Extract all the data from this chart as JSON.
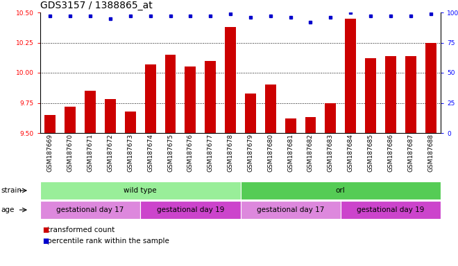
{
  "title": "GDS3157 / 1388865_at",
  "samples": [
    "GSM187669",
    "GSM187670",
    "GSM187671",
    "GSM187672",
    "GSM187673",
    "GSM187674",
    "GSM187675",
    "GSM187676",
    "GSM187677",
    "GSM187678",
    "GSM187679",
    "GSM187680",
    "GSM187681",
    "GSM187682",
    "GSM187683",
    "GSM187684",
    "GSM187685",
    "GSM187686",
    "GSM187687",
    "GSM187688"
  ],
  "bar_values": [
    9.65,
    9.72,
    9.85,
    9.78,
    9.68,
    10.07,
    10.15,
    10.05,
    10.1,
    10.38,
    9.83,
    9.9,
    9.62,
    9.63,
    9.75,
    10.45,
    10.12,
    10.14,
    10.14,
    10.25
  ],
  "percentile_values": [
    97,
    97,
    97,
    95,
    97,
    97,
    97,
    97,
    97,
    99,
    96,
    97,
    96,
    92,
    96,
    100,
    97,
    97,
    97,
    99
  ],
  "ylim_left": [
    9.5,
    10.5
  ],
  "ylim_right": [
    0,
    100
  ],
  "yticks_left": [
    9.5,
    9.75,
    10.0,
    10.25,
    10.5
  ],
  "yticks_right": [
    0,
    25,
    50,
    75,
    100
  ],
  "bar_color": "#cc0000",
  "dot_color": "#0000cc",
  "grid_yticks": [
    9.75,
    10.0,
    10.25
  ],
  "strain_groups": [
    {
      "label": "wild type",
      "start": 0,
      "end": 9,
      "color": "#99ee99"
    },
    {
      "label": "orl",
      "start": 10,
      "end": 19,
      "color": "#55cc55"
    }
  ],
  "age_groups": [
    {
      "label": "gestational day 17",
      "start": 0,
      "end": 4,
      "color": "#dd88dd"
    },
    {
      "label": "gestational day 19",
      "start": 5,
      "end": 9,
      "color": "#cc44cc"
    },
    {
      "label": "gestational day 17",
      "start": 10,
      "end": 14,
      "color": "#dd88dd"
    },
    {
      "label": "gestational day 19",
      "start": 15,
      "end": 19,
      "color": "#cc44cc"
    }
  ],
  "legend_items": [
    {
      "label": "transformed count",
      "color": "#cc0000"
    },
    {
      "label": "percentile rank within the sample",
      "color": "#0000cc"
    }
  ],
  "bg_color": "#ffffff",
  "title_fontsize": 10,
  "tick_fontsize": 6.5,
  "label_fontsize": 7.5,
  "annot_fontsize": 7.5
}
